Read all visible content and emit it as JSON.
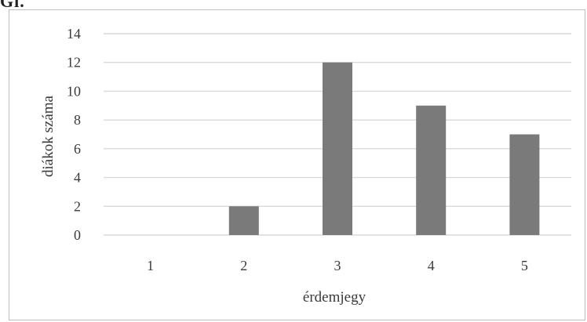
{
  "corner_label": "Gl.",
  "chart_data": {
    "type": "bar",
    "categories": [
      "1",
      "2",
      "3",
      "4",
      "5"
    ],
    "values": [
      0,
      2,
      12,
      9,
      7
    ],
    "title": "",
    "xlabel": "érdemjegy",
    "ylabel": "diákok száma",
    "ylim": [
      0,
      14
    ],
    "yticks": [
      "0",
      "2",
      "4",
      "6",
      "8",
      "10",
      "12",
      "14"
    ],
    "grid": true,
    "legend": "none",
    "colors": {
      "bar": "#7a7a7a",
      "grid": "#d9d9d9",
      "text": "#3a3a3a"
    }
  }
}
